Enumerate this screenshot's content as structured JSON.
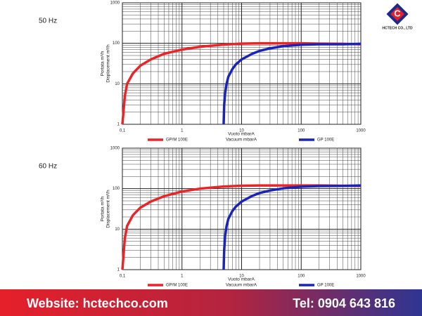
{
  "chart_data": [
    {
      "type": "line",
      "title": "50 Hz",
      "x_label": [
        "Vuoto mbarA",
        "Vacuum mbarA"
      ],
      "y_label": [
        "Portata m³/h",
        "Displacement m³/h"
      ],
      "xscale": "log",
      "yscale": "log",
      "grid": true,
      "xlim": [
        0.1,
        1000
      ],
      "xticks": [
        {
          "value": 0.1,
          "label": "0,1"
        },
        1,
        10,
        100,
        1000
      ],
      "ylim": [
        1,
        1000
      ],
      "yticks": [
        1,
        10,
        100,
        1000
      ],
      "series": [
        {
          "name": "GP/M 100E",
          "color": "#e8262a",
          "x": [
            0.1,
            0.11,
            0.12,
            0.15,
            0.2,
            0.3,
            0.5,
            1,
            2,
            5,
            10,
            20,
            50,
            100,
            200,
            500,
            1000
          ],
          "values": [
            1,
            5,
            10,
            18,
            28,
            40,
            55,
            70,
            82,
            93,
            98,
            100,
            100,
            100,
            98,
            97,
            95
          ]
        },
        {
          "name": "GP 100E",
          "color": "#1a25b8",
          "x": [
            5,
            5.1,
            5.3,
            5.6,
            6,
            7,
            8,
            10,
            15,
            20,
            30,
            50,
            100,
            200,
            500,
            1000
          ],
          "values": [
            1,
            3,
            6,
            10,
            15,
            23,
            30,
            40,
            55,
            65,
            75,
            85,
            92,
            95,
            95,
            97
          ]
        }
      ]
    },
    {
      "type": "line",
      "title": "60 Hz",
      "x_label": [
        "Vuoto mbarA",
        "Vacuum mbarA"
      ],
      "y_label": [
        "Portata m³/h",
        "Displacement m³/h"
      ],
      "xscale": "log",
      "yscale": "log",
      "grid": true,
      "xlim": [
        0.1,
        1000
      ],
      "xticks": [
        {
          "value": 0.1,
          "label": "0,1"
        },
        1,
        10,
        100,
        1000
      ],
      "ylim": [
        1,
        1000
      ],
      "yticks": [
        1,
        10,
        100,
        1000
      ],
      "series": [
        {
          "name": "GP/M 100E",
          "color": "#e8262a",
          "x": [
            0.1,
            0.11,
            0.12,
            0.15,
            0.2,
            0.3,
            0.5,
            1,
            2,
            5,
            10,
            20,
            50,
            100,
            200,
            500,
            1000
          ],
          "values": [
            1,
            6,
            12,
            22,
            34,
            48,
            65,
            85,
            100,
            113,
            118,
            120,
            120,
            120,
            120,
            118,
            117
          ]
        },
        {
          "name": "GP 100E",
          "color": "#1a25b8",
          "x": [
            5,
            5.1,
            5.3,
            5.6,
            6,
            7,
            8,
            10,
            15,
            20,
            30,
            50,
            100,
            200,
            500,
            1000
          ],
          "values": [
            1,
            3,
            7,
            12,
            18,
            28,
            36,
            48,
            66,
            78,
            90,
            102,
            112,
            116,
            117,
            120
          ]
        }
      ]
    }
  ],
  "logo": {
    "text": "HCTECH CO., LTD"
  },
  "footer": {
    "website": "Website: hctechco.com",
    "phone": "Tel: 0904 643 816"
  }
}
